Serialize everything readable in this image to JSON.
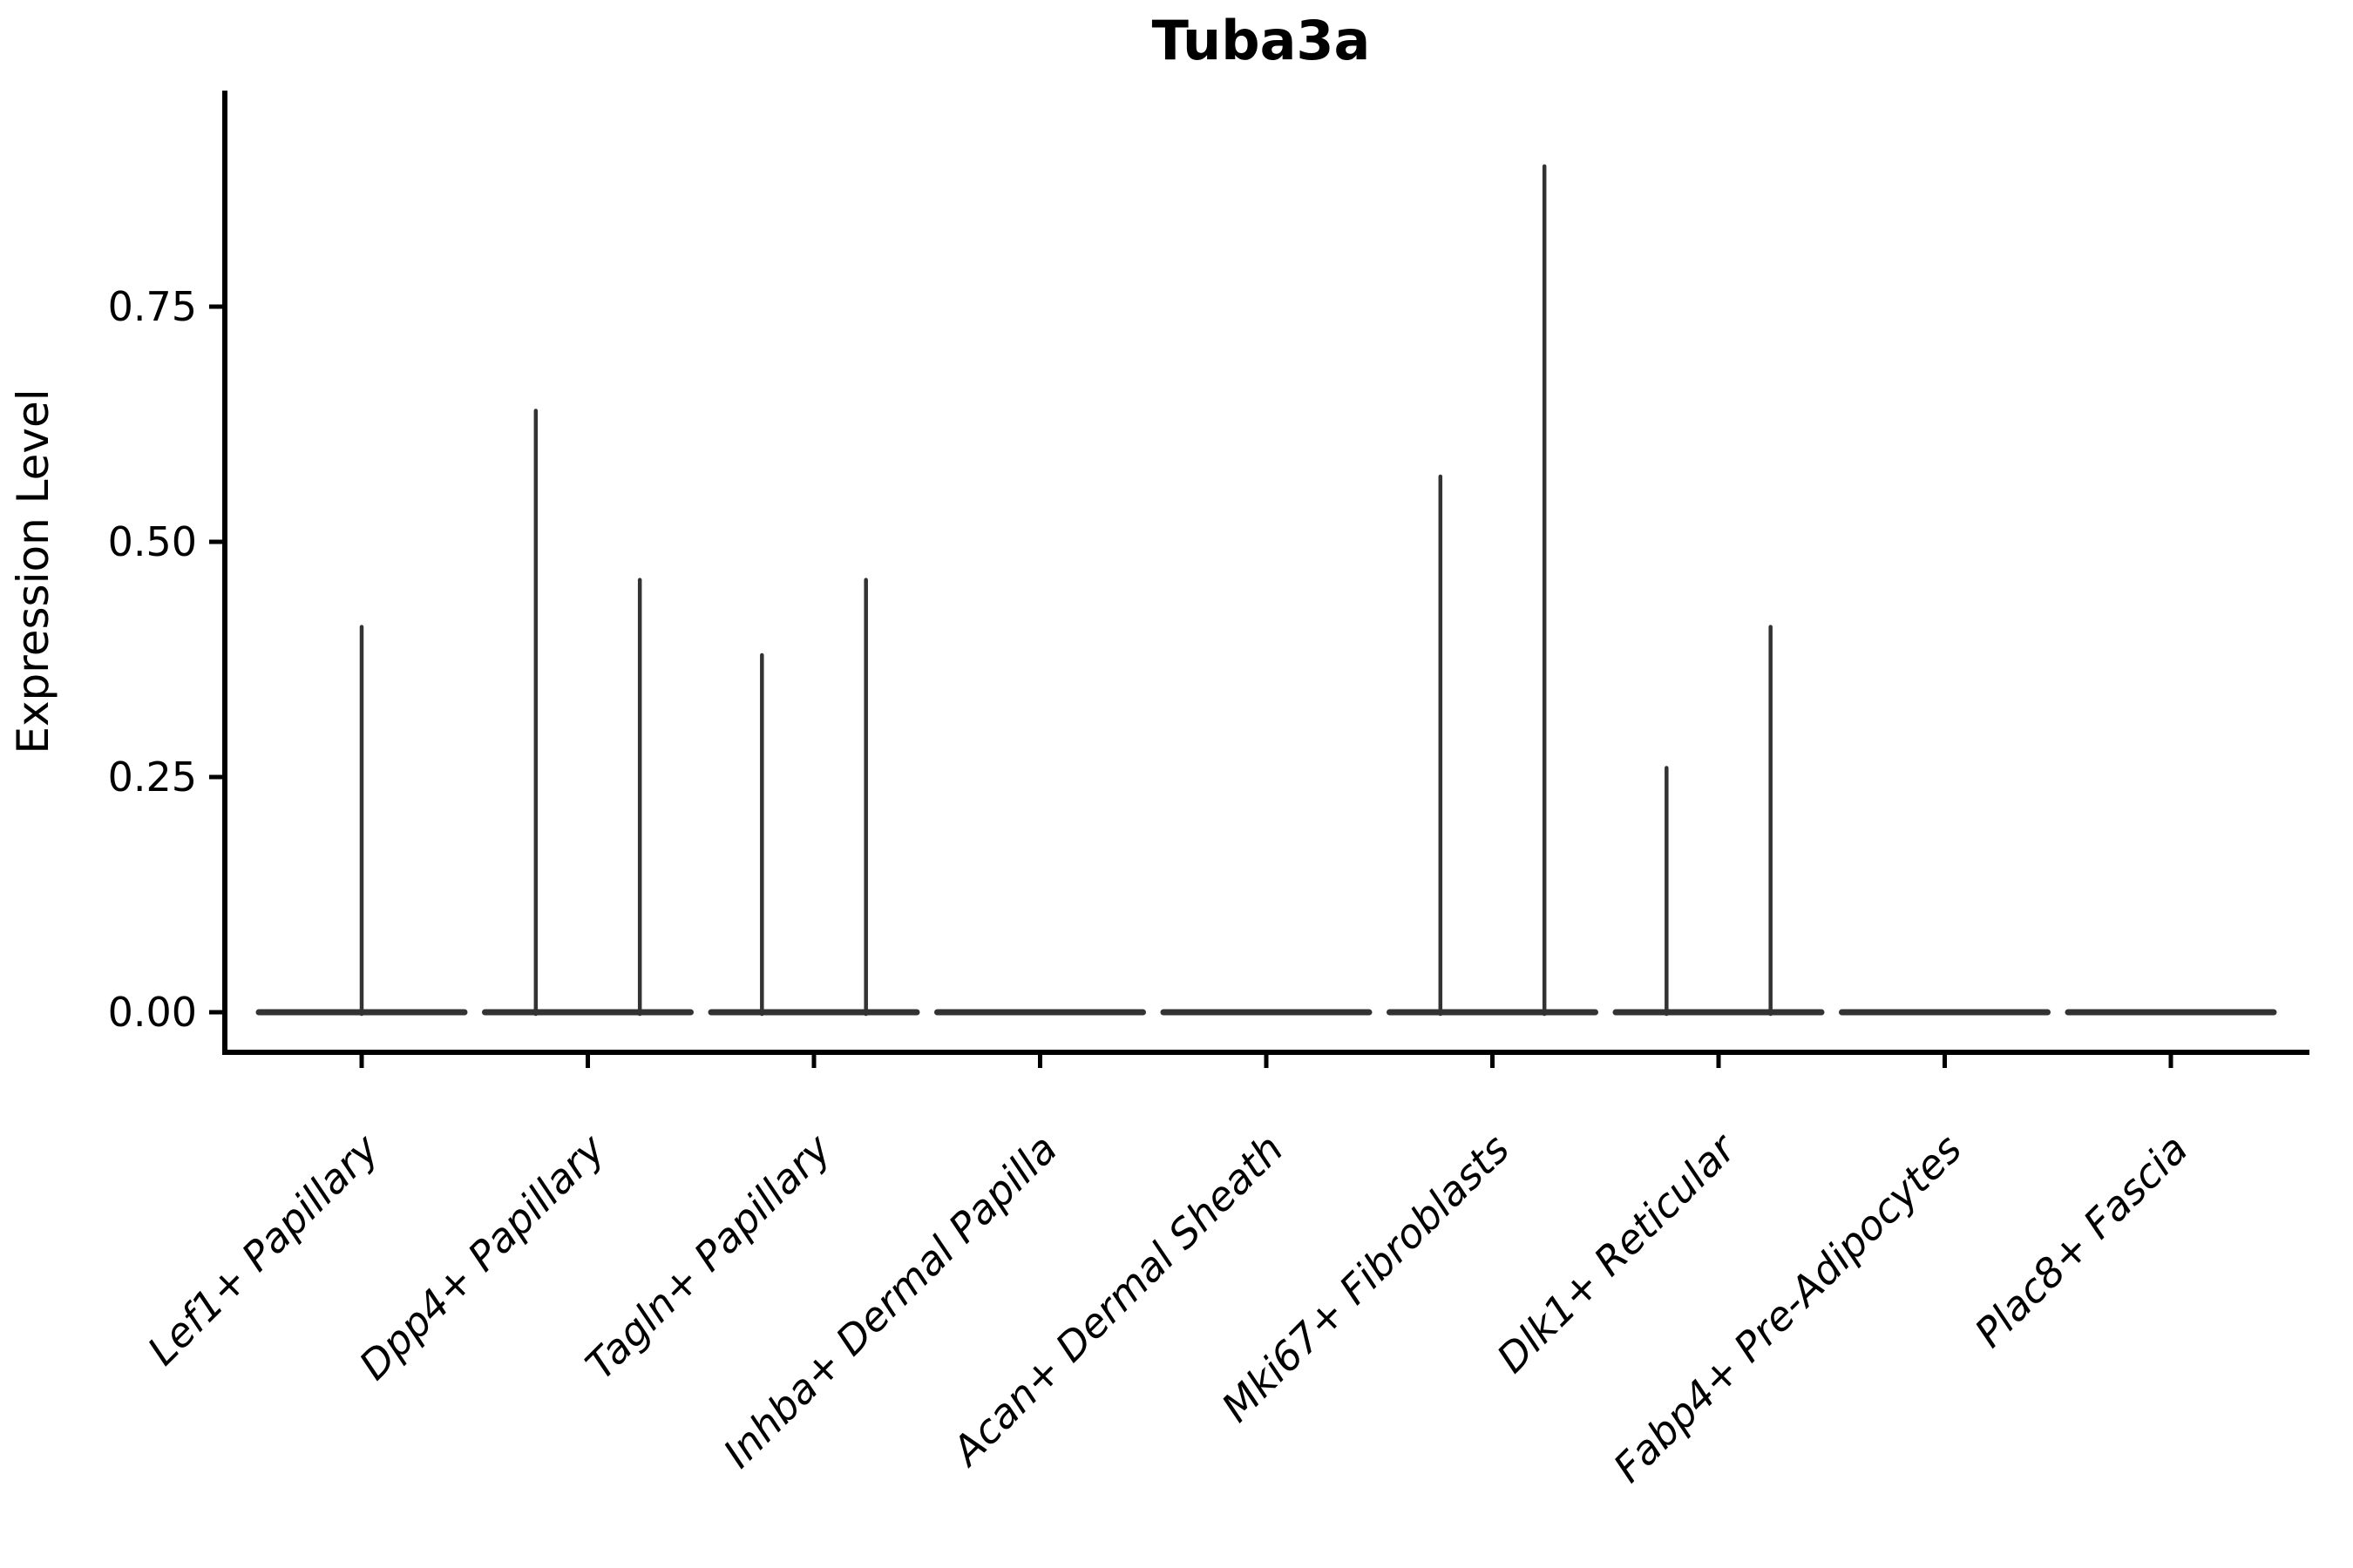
{
  "figure": {
    "background": "#ffffff",
    "axis_color": "#000000",
    "violin_color": "#333333"
  },
  "chart_data": {
    "type": "violin",
    "title": "Tuba3a",
    "xlabel": "",
    "ylabel": "Expression Level",
    "ylim": [
      0,
      0.98
    ],
    "yticks": [
      "0.00",
      "0.25",
      "0.50",
      "0.75"
    ],
    "ytick_values": [
      0.0,
      0.25,
      0.5,
      0.75
    ],
    "grid": false,
    "legend": "none",
    "categories": [
      "Lef1+ Papillary",
      "Dpp4+ Papillary",
      "Tagln+ Papillary",
      "Inhba+ Dermal Papilla",
      "Acan+ Dermal Sheath",
      "Mki67+ Fibroblasts",
      "Dlk1+ Reticular",
      "Fabp4+ Pre-Adipocytes",
      "Plac8+ Fascia"
    ],
    "violins": [
      {
        "category": "Lef1+ Papillary",
        "baseline_value": 0,
        "spikes": [
          {
            "offset": 0.0,
            "max": 0.41
          }
        ]
      },
      {
        "category": "Dpp4+ Papillary",
        "baseline_value": 0,
        "spikes": [
          {
            "offset": -0.23,
            "max": 0.64
          },
          {
            "offset": 0.23,
            "max": 0.46
          }
        ]
      },
      {
        "category": "Tagln+ Papillary",
        "baseline_value": 0,
        "spikes": [
          {
            "offset": -0.23,
            "max": 0.38
          },
          {
            "offset": 0.23,
            "max": 0.46
          }
        ]
      },
      {
        "category": "Inhba+ Dermal Papilla",
        "baseline_value": 0,
        "spikes": []
      },
      {
        "category": "Acan+ Dermal Sheath",
        "baseline_value": 0,
        "spikes": []
      },
      {
        "category": "Mki67+ Fibroblasts",
        "baseline_value": 0,
        "spikes": [
          {
            "offset": -0.23,
            "max": 0.57
          },
          {
            "offset": 0.23,
            "max": 0.9
          }
        ]
      },
      {
        "category": "Dlk1+ Reticular",
        "baseline_value": 0,
        "spikes": [
          {
            "offset": -0.23,
            "max": 0.26
          },
          {
            "offset": 0.23,
            "max": 0.41
          }
        ]
      },
      {
        "category": "Fabp4+ Pre-Adipocytes",
        "baseline_value": 0,
        "spikes": []
      },
      {
        "category": "Plac8+ Fascia",
        "baseline_value": 0,
        "spikes": []
      }
    ]
  }
}
